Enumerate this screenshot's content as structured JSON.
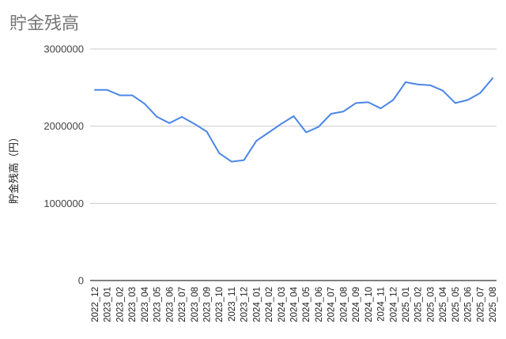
{
  "chart_data": {
    "type": "line",
    "title": "貯金残高",
    "xlabel": "",
    "ylabel": "貯金残高（円）",
    "ylim": [
      0,
      3000000
    ],
    "yticks": [
      0,
      1000000,
      2000000,
      3000000
    ],
    "ytick_labels": [
      "0",
      "1000000",
      "2000000",
      "3000000"
    ],
    "grid": true,
    "legend": "none",
    "categories": [
      "2022_12",
      "2023_01",
      "2023_02",
      "2023_03",
      "2023_04",
      "2023_05",
      "2023_06",
      "2023_07",
      "2023_08",
      "2023_09",
      "2023_10",
      "2023_11",
      "2023_12",
      "2024_01",
      "2024_02",
      "2024_03",
      "2024_04",
      "2024_05",
      "2024_06",
      "2024_07",
      "2024_08",
      "2024_09",
      "2024_10",
      "2024_11",
      "2024_12",
      "2025_01",
      "2025_02",
      "2025_03",
      "2025_04",
      "2025_05",
      "2025_06",
      "2025_07",
      "2025_08"
    ],
    "series": [
      {
        "values": [
          2470000,
          2470000,
          2400000,
          2400000,
          2290000,
          2120000,
          2040000,
          2120000,
          2030000,
          1930000,
          1650000,
          1540000,
          1560000,
          1810000,
          1920000,
          2030000,
          2130000,
          1920000,
          1990000,
          2160000,
          2190000,
          2300000,
          2310000,
          2230000,
          2340000,
          2570000,
          2540000,
          2530000,
          2460000,
          2300000,
          2340000,
          2430000,
          2620000
        ],
        "color": "#4a86e8"
      }
    ]
  }
}
